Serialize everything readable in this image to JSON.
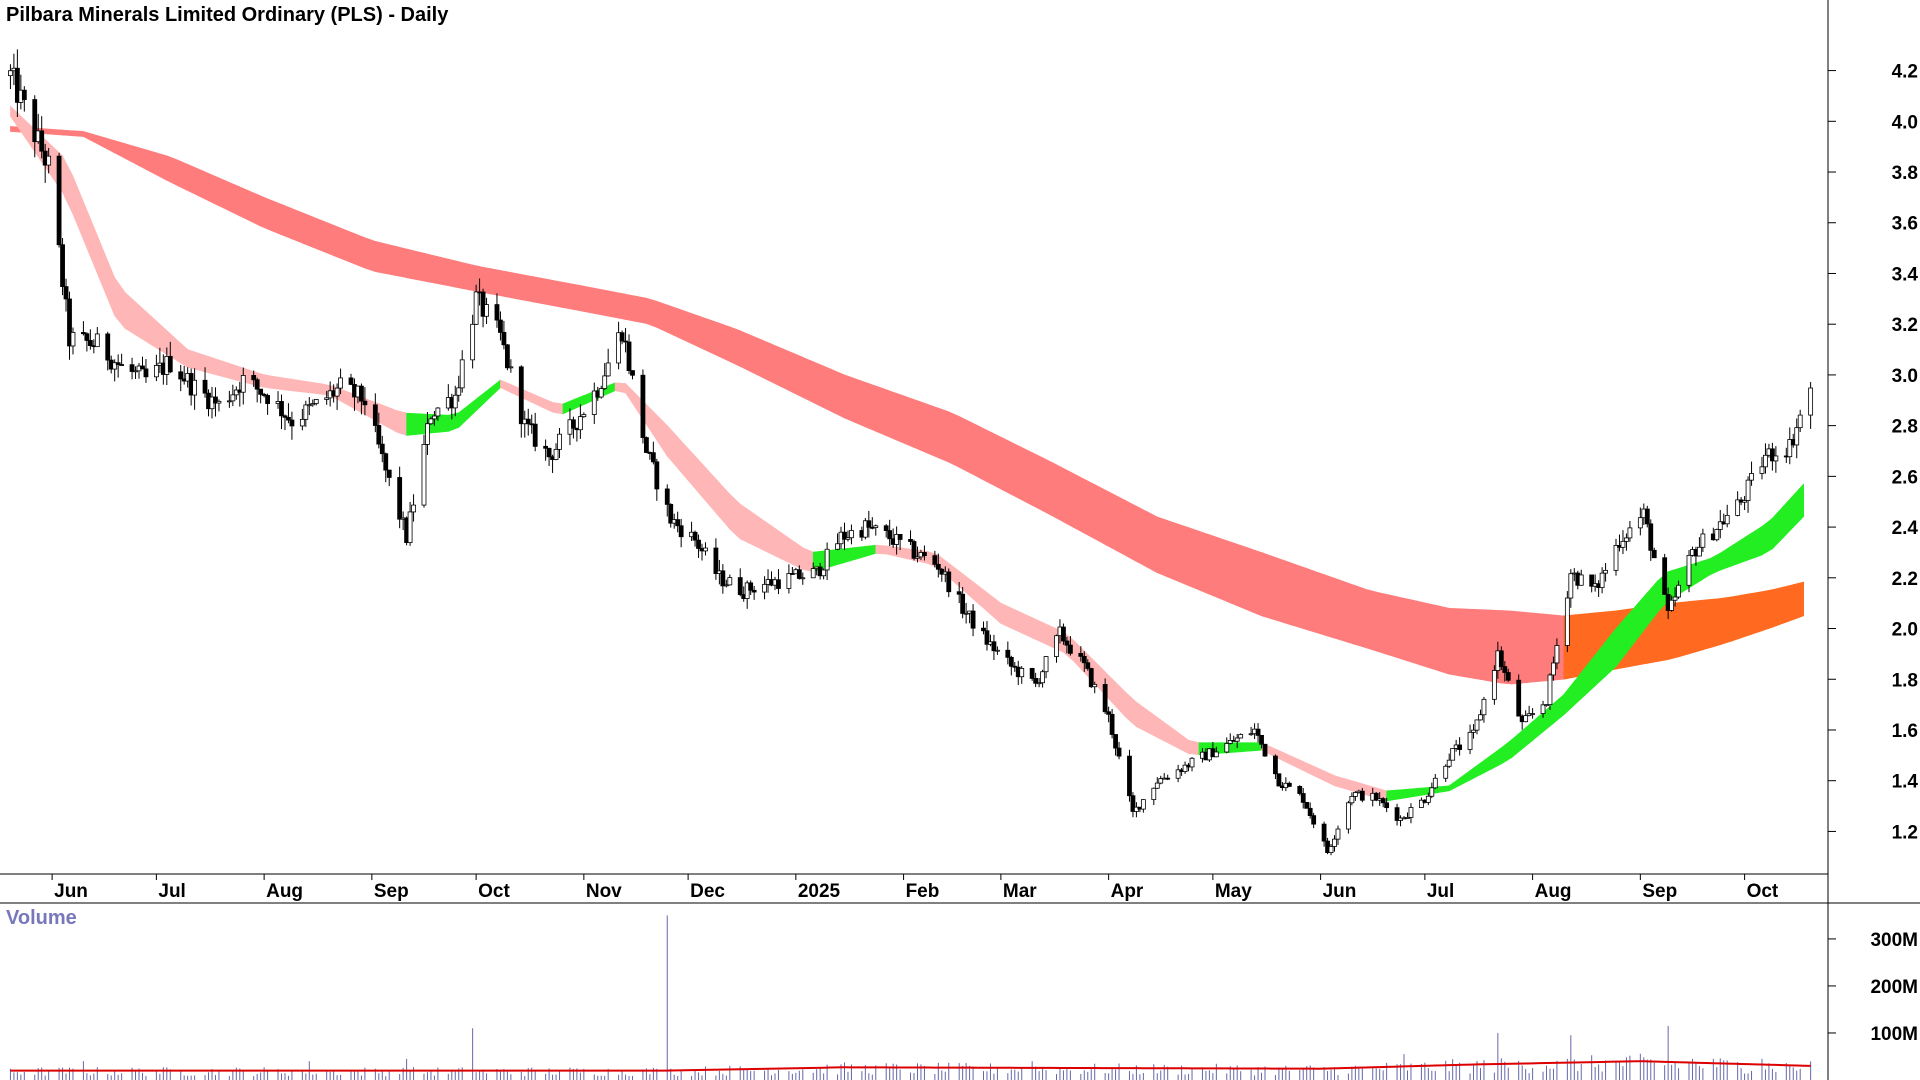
{
  "chart_data": {
    "type": "candlestick",
    "title": "Pilbara Minerals Limited Ordinary (PLS) - Daily",
    "price_axis": {
      "range": [
        1.04,
        4.36
      ],
      "ticks": [
        "4.2",
        "4.0",
        "3.8",
        "3.6",
        "3.4",
        "3.2",
        "3.0",
        "2.8",
        "2.6",
        "2.4",
        "2.2",
        "2.0",
        "1.8",
        "1.6",
        "1.4",
        "1.2"
      ]
    },
    "x_axis": {
      "labels": [
        "Jun",
        "Jul",
        "Aug",
        "Sep",
        "Oct",
        "Nov",
        "Dec",
        "2025",
        "Feb",
        "Mar",
        "Apr",
        "May",
        "Jun",
        "Jul",
        "Aug",
        "Sep",
        "Oct"
      ]
    },
    "price_path": [
      [
        "2024-05-20",
        4.18
      ],
      [
        "2024-05-24",
        4.05
      ],
      [
        "2024-05-31",
        3.82
      ],
      [
        "2024-06-06",
        3.14
      ],
      [
        "2024-06-14",
        3.12
      ],
      [
        "2024-06-21",
        3.03
      ],
      [
        "2024-06-28",
        2.98
      ],
      [
        "2024-07-05",
        3.05
      ],
      [
        "2024-07-12",
        2.95
      ],
      [
        "2024-07-19",
        2.88
      ],
      [
        "2024-07-26",
        2.98
      ],
      [
        "2024-08-02",
        2.92
      ],
      [
        "2024-08-09",
        2.82
      ],
      [
        "2024-08-16",
        2.88
      ],
      [
        "2024-08-23",
        2.95
      ],
      [
        "2024-08-30",
        2.9
      ],
      [
        "2024-09-05",
        2.62
      ],
      [
        "2024-09-11",
        2.36
      ],
      [
        "2024-09-18",
        2.85
      ],
      [
        "2024-09-25",
        2.92
      ],
      [
        "2024-10-01",
        3.3
      ],
      [
        "2024-10-08",
        3.15
      ],
      [
        "2024-10-15",
        2.8
      ],
      [
        "2024-10-22",
        2.68
      ],
      [
        "2024-10-29",
        2.8
      ],
      [
        "2024-11-05",
        2.95
      ],
      [
        "2024-11-12",
        3.18
      ],
      [
        "2024-11-19",
        2.7
      ],
      [
        "2024-11-26",
        2.43
      ],
      [
        "2024-12-03",
        2.35
      ],
      [
        "2024-12-10",
        2.2
      ],
      [
        "2024-12-17",
        2.15
      ],
      [
        "2024-12-24",
        2.18
      ],
      [
        "2025-01-07",
        2.22
      ],
      [
        "2025-01-14",
        2.36
      ],
      [
        "2025-01-21",
        2.4
      ],
      [
        "2025-01-28",
        2.36
      ],
      [
        "2025-02-04",
        2.3
      ],
      [
        "2025-02-11",
        2.25
      ],
      [
        "2025-02-18",
        2.08
      ],
      [
        "2025-02-25",
        1.95
      ],
      [
        "2025-03-04",
        1.85
      ],
      [
        "2025-03-11",
        1.78
      ],
      [
        "2025-03-18",
        1.98
      ],
      [
        "2025-03-25",
        1.85
      ],
      [
        "2025-04-01",
        1.65
      ],
      [
        "2025-04-08",
        1.27
      ],
      [
        "2025-04-15",
        1.4
      ],
      [
        "2025-04-22",
        1.45
      ],
      [
        "2025-04-29",
        1.5
      ],
      [
        "2025-05-06",
        1.55
      ],
      [
        "2025-05-13",
        1.6
      ],
      [
        "2025-05-20",
        1.4
      ],
      [
        "2025-05-27",
        1.33
      ],
      [
        "2025-06-03",
        1.12
      ],
      [
        "2025-06-10",
        1.35
      ],
      [
        "2025-06-17",
        1.33
      ],
      [
        "2025-06-24",
        1.25
      ],
      [
        "2025-07-01",
        1.33
      ],
      [
        "2025-07-08",
        1.5
      ],
      [
        "2025-07-15",
        1.58
      ],
      [
        "2025-07-22",
        1.9
      ],
      [
        "2025-07-29",
        1.62
      ],
      [
        "2025-08-05",
        1.72
      ],
      [
        "2025-08-12",
        2.22
      ],
      [
        "2025-08-19",
        2.15
      ],
      [
        "2025-08-26",
        2.35
      ],
      [
        "2025-09-02",
        2.45
      ],
      [
        "2025-09-09",
        2.05
      ],
      [
        "2025-09-16",
        2.3
      ],
      [
        "2025-09-23",
        2.4
      ],
      [
        "2025-09-30",
        2.5
      ],
      [
        "2025-10-07",
        2.68
      ],
      [
        "2025-10-14",
        2.72
      ],
      [
        "2025-10-20",
        2.95
      ]
    ],
    "short_band": [
      [
        "2024-05-20",
        4.06,
        4.02
      ],
      [
        "2024-06-05",
        3.85,
        3.7
      ],
      [
        "2024-06-20",
        3.35,
        3.2
      ],
      [
        "2024-07-10",
        3.1,
        3.03
      ],
      [
        "2024-08-01",
        3.0,
        2.95
      ],
      [
        "2024-08-20",
        2.96,
        2.92
      ],
      [
        "2024-09-10",
        2.85,
        2.76
      ],
      [
        "2024-09-25",
        2.84,
        2.78
      ],
      [
        "2024-10-08",
        2.98,
        2.95
      ],
      [
        "2024-10-25",
        2.88,
        2.84
      ],
      [
        "2024-11-12",
        2.98,
        2.95
      ],
      [
        "2024-11-25",
        2.8,
        2.68
      ],
      [
        "2024-12-15",
        2.5,
        2.36
      ],
      [
        "2025-01-05",
        2.3,
        2.22
      ],
      [
        "2025-01-25",
        2.33,
        2.3
      ],
      [
        "2025-02-10",
        2.3,
        2.25
      ],
      [
        "2025-03-01",
        2.1,
        2.02
      ],
      [
        "2025-03-20",
        1.98,
        1.9
      ],
      [
        "2025-04-08",
        1.72,
        1.62
      ],
      [
        "2025-04-25",
        1.55,
        1.5
      ],
      [
        "2025-05-15",
        1.55,
        1.52
      ],
      [
        "2025-06-05",
        1.42,
        1.38
      ],
      [
        "2025-06-20",
        1.36,
        1.32
      ],
      [
        "2025-07-08",
        1.38,
        1.36
      ],
      [
        "2025-07-25",
        1.55,
        1.48
      ],
      [
        "2025-08-10",
        1.74,
        1.66
      ],
      [
        "2025-08-25",
        2.0,
        1.85
      ],
      [
        "2025-09-08",
        2.22,
        2.1
      ],
      [
        "2025-09-22",
        2.28,
        2.22
      ],
      [
        "2025-10-08",
        2.42,
        2.3
      ],
      [
        "2025-10-20",
        2.6,
        2.47
      ]
    ],
    "long_band": [
      [
        "2024-05-20",
        3.98,
        3.96
      ],
      [
        "2024-06-10",
        3.96,
        3.94
      ],
      [
        "2024-07-05",
        3.86,
        3.76
      ],
      [
        "2024-08-01",
        3.7,
        3.58
      ],
      [
        "2024-09-01",
        3.53,
        3.41
      ],
      [
        "2024-10-01",
        3.43,
        3.33
      ],
      [
        "2024-11-01",
        3.35,
        3.25
      ],
      [
        "2024-11-20",
        3.3,
        3.2
      ],
      [
        "2024-12-15",
        3.18,
        3.04
      ],
      [
        "2025-01-15",
        3.0,
        2.83
      ],
      [
        "2025-02-15",
        2.85,
        2.65
      ],
      [
        "2025-03-15",
        2.66,
        2.45
      ],
      [
        "2025-04-15",
        2.44,
        2.22
      ],
      [
        "2025-05-15",
        2.3,
        2.05
      ],
      [
        "2025-06-15",
        2.15,
        1.92
      ],
      [
        "2025-07-08",
        2.08,
        1.82
      ],
      [
        "2025-07-25",
        2.07,
        1.78
      ],
      [
        "2025-08-10",
        2.05,
        1.8
      ],
      [
        "2025-08-25",
        2.07,
        1.84
      ],
      [
        "2025-09-10",
        2.1,
        1.88
      ],
      [
        "2025-09-25",
        2.12,
        1.94
      ],
      [
        "2025-10-08",
        2.15,
        2.0
      ],
      [
        "2025-10-20",
        2.19,
        2.06
      ]
    ],
    "volume": {
      "label": "Volume",
      "ticks": [
        "300M",
        "200M",
        "100M"
      ],
      "range": [
        0,
        370
      ],
      "spikes": [
        [
          "2024-06-10",
          40
        ],
        [
          "2024-08-14",
          40
        ],
        [
          "2024-09-11",
          45
        ],
        [
          "2024-09-30",
          110
        ],
        [
          "2024-11-25",
          350
        ],
        [
          "2025-03-10",
          40
        ],
        [
          "2025-06-25",
          55
        ],
        [
          "2025-07-22",
          100
        ],
        [
          "2025-08-12",
          95
        ],
        [
          "2025-09-09",
          115
        ],
        [
          "2025-09-16",
          45
        ],
        [
          "2025-10-06",
          45
        ]
      ],
      "average": [
        [
          "2024-05-20",
          20
        ],
        [
          "2024-11-25",
          20
        ],
        [
          "2025-01-15",
          27
        ],
        [
          "2025-06-01",
          24
        ],
        [
          "2025-07-15",
          33
        ],
        [
          "2025-09-01",
          40
        ],
        [
          "2025-10-20",
          30
        ]
      ]
    },
    "colors": {
      "up": "#ffffff",
      "down": "#000000",
      "short_band_bearish": "#ffb6b6",
      "short_band_bullish": "#22ee22",
      "long_band_bearish": "#ff7c7c",
      "long_band_bullish": "#ff6a20",
      "volume_bar": "#6666aa",
      "volume_avg": "#dd0000"
    },
    "grid": false,
    "legend": "none"
  }
}
